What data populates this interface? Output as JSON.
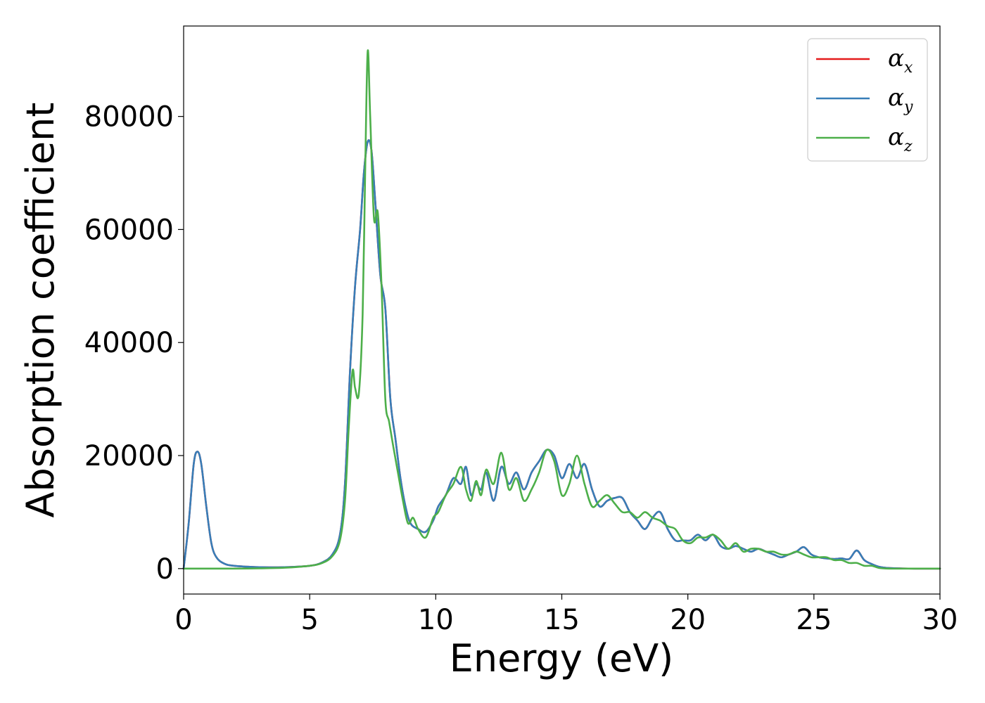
{
  "chart_data": {
    "type": "line",
    "title": "",
    "xlabel": "Energy (eV)",
    "ylabel": "Absorption coefficient",
    "xlim": [
      0,
      30
    ],
    "ylim": [
      -4500,
      96000
    ],
    "xticks": [
      0,
      5,
      10,
      15,
      20,
      25,
      30
    ],
    "yticks": [
      0,
      20000,
      40000,
      60000,
      80000
    ],
    "grid": false,
    "legend_position": "top-right",
    "series": [
      {
        "name": "αx",
        "legend": {
          "base": "α",
          "sub": "x"
        },
        "color": "#e41a1c",
        "x": [
          0,
          0.2,
          0.4,
          0.55,
          0.7,
          0.9,
          1.1,
          1.3,
          1.6,
          2,
          3,
          4,
          5,
          5.5,
          5.9,
          6.2,
          6.4,
          6.6,
          6.8,
          7.0,
          7.15,
          7.3,
          7.45,
          7.6,
          7.8,
          8.0,
          8.2,
          8.4,
          8.6,
          8.8,
          9.0,
          9.3,
          9.6,
          9.9,
          10.1,
          10.4,
          10.7,
          11.0,
          11.2,
          11.4,
          11.6,
          11.8,
          12.0,
          12.3,
          12.6,
          12.9,
          13.2,
          13.5,
          13.8,
          14.1,
          14.4,
          14.7,
          15.0,
          15.3,
          15.6,
          15.9,
          16.2,
          16.5,
          16.8,
          17.1,
          17.4,
          17.7,
          18.0,
          18.3,
          18.6,
          18.9,
          19.2,
          19.5,
          19.8,
          20.1,
          20.4,
          20.7,
          21.0,
          21.3,
          21.6,
          21.9,
          22.2,
          22.5,
          22.8,
          23.1,
          23.4,
          23.7,
          24.0,
          24.3,
          24.6,
          24.9,
          25.2,
          25.5,
          25.8,
          26.1,
          26.4,
          26.7,
          27.0,
          27.3,
          27.6,
          28,
          29,
          30
        ],
        "y": [
          0,
          8000,
          18500,
          20700,
          18500,
          11000,
          4500,
          2000,
          900,
          500,
          250,
          250,
          500,
          1100,
          2500,
          6000,
          15000,
          35000,
          50000,
          60000,
          70000,
          75500,
          74000,
          65000,
          52000,
          46000,
          30000,
          23000,
          16000,
          11000,
          8000,
          7000,
          6500,
          8500,
          11000,
          13000,
          16000,
          15000,
          18000,
          13000,
          15000,
          14000,
          17000,
          12000,
          18000,
          15000,
          17000,
          14000,
          17000,
          19000,
          21000,
          20000,
          16000,
          18500,
          16000,
          18500,
          14000,
          11000,
          12000,
          12500,
          12500,
          10000,
          8500,
          7000,
          9000,
          10000,
          7000,
          5000,
          5000,
          5000,
          6000,
          5000,
          6000,
          4000,
          3500,
          4000,
          3500,
          3000,
          3500,
          3000,
          2500,
          2000,
          2500,
          3000,
          3800,
          2500,
          2000,
          1800,
          1700,
          1800,
          1700,
          3200,
          1500,
          800,
          300,
          100,
          0,
          0
        ]
      },
      {
        "name": "αy",
        "legend": {
          "base": "α",
          "sub": "y"
        },
        "color": "#377eb8",
        "x": [
          0,
          0.2,
          0.4,
          0.55,
          0.7,
          0.9,
          1.1,
          1.3,
          1.6,
          2,
          3,
          4,
          5,
          5.5,
          5.9,
          6.2,
          6.4,
          6.6,
          6.8,
          7.0,
          7.15,
          7.3,
          7.45,
          7.6,
          7.8,
          8.0,
          8.2,
          8.4,
          8.6,
          8.8,
          9.0,
          9.3,
          9.6,
          9.9,
          10.1,
          10.4,
          10.7,
          11.0,
          11.2,
          11.4,
          11.6,
          11.8,
          12.0,
          12.3,
          12.6,
          12.9,
          13.2,
          13.5,
          13.8,
          14.1,
          14.4,
          14.7,
          15.0,
          15.3,
          15.6,
          15.9,
          16.2,
          16.5,
          16.8,
          17.1,
          17.4,
          17.7,
          18.0,
          18.3,
          18.6,
          18.9,
          19.2,
          19.5,
          19.8,
          20.1,
          20.4,
          20.7,
          21.0,
          21.3,
          21.6,
          21.9,
          22.2,
          22.5,
          22.8,
          23.1,
          23.4,
          23.7,
          24.0,
          24.3,
          24.6,
          24.9,
          25.2,
          25.5,
          25.8,
          26.1,
          26.4,
          26.7,
          27.0,
          27.3,
          27.6,
          28,
          29,
          30
        ],
        "y": [
          0,
          8000,
          18500,
          20700,
          18500,
          11000,
          4500,
          2000,
          900,
          500,
          250,
          250,
          500,
          1100,
          2500,
          6000,
          15000,
          35000,
          50000,
          60000,
          70000,
          75500,
          74000,
          65000,
          52000,
          46000,
          30000,
          23000,
          16000,
          11000,
          8000,
          7000,
          6500,
          8500,
          11000,
          13000,
          16000,
          15000,
          18000,
          13000,
          15000,
          14000,
          17000,
          12000,
          18000,
          15000,
          17000,
          14000,
          17000,
          19000,
          21000,
          20000,
          16000,
          18500,
          16000,
          18500,
          14000,
          11000,
          12000,
          12500,
          12500,
          10000,
          8500,
          7000,
          9000,
          10000,
          7000,
          5000,
          5000,
          5000,
          6000,
          5000,
          6000,
          4000,
          3500,
          4000,
          3500,
          3000,
          3500,
          3000,
          2500,
          2000,
          2500,
          3000,
          3800,
          2500,
          2000,
          1800,
          1700,
          1800,
          1700,
          3200,
          1500,
          800,
          300,
          100,
          0,
          0
        ]
      },
      {
        "name": "αz",
        "legend": {
          "base": "α",
          "sub": "z"
        },
        "color": "#4daf4a",
        "x": [
          0,
          1,
          2,
          3,
          4,
          5,
          5.5,
          5.9,
          6.2,
          6.4,
          6.55,
          6.7,
          6.8,
          6.95,
          7.1,
          7.2,
          7.3,
          7.4,
          7.55,
          7.7,
          7.85,
          8.0,
          8.15,
          8.3,
          8.5,
          8.7,
          8.9,
          9.1,
          9.3,
          9.6,
          9.9,
          10.1,
          10.4,
          10.7,
          11.0,
          11.2,
          11.4,
          11.6,
          11.8,
          12.0,
          12.3,
          12.6,
          12.9,
          13.2,
          13.5,
          13.8,
          14.1,
          14.4,
          14.7,
          15.0,
          15.3,
          15.6,
          15.9,
          16.2,
          16.5,
          16.8,
          17.1,
          17.4,
          17.7,
          18.0,
          18.3,
          18.6,
          18.9,
          19.2,
          19.5,
          19.8,
          20.1,
          20.4,
          20.7,
          21.0,
          21.3,
          21.6,
          21.9,
          22.2,
          22.5,
          22.8,
          23.1,
          23.4,
          23.7,
          24.0,
          24.3,
          24.6,
          24.9,
          25.2,
          25.5,
          25.8,
          26.1,
          26.4,
          26.7,
          27.0,
          27.3,
          27.6,
          28,
          29,
          30
        ],
        "y": [
          0,
          0,
          0,
          50,
          150,
          500,
          1000,
          2200,
          5000,
          12000,
          25000,
          35000,
          32000,
          31000,
          45000,
          70000,
          91500,
          80000,
          62000,
          63000,
          50000,
          30000,
          26000,
          22000,
          17000,
          12000,
          8000,
          9000,
          7000,
          5500,
          9000,
          10000,
          13000,
          15000,
          18000,
          14000,
          12000,
          15500,
          13000,
          17500,
          15000,
          20500,
          14000,
          16000,
          12000,
          14000,
          17000,
          21000,
          19000,
          13000,
          15000,
          20000,
          15000,
          11000,
          12000,
          13000,
          11500,
          10000,
          10000,
          9000,
          10000,
          9000,
          8500,
          7500,
          7000,
          5000,
          4500,
          5500,
          5500,
          6000,
          5000,
          3500,
          4500,
          3000,
          3500,
          3500,
          3000,
          3000,
          2500,
          2500,
          3000,
          2500,
          2000,
          2000,
          2000,
          1500,
          1500,
          1000,
          1000,
          500,
          500,
          100,
          0,
          0,
          0
        ]
      }
    ]
  }
}
